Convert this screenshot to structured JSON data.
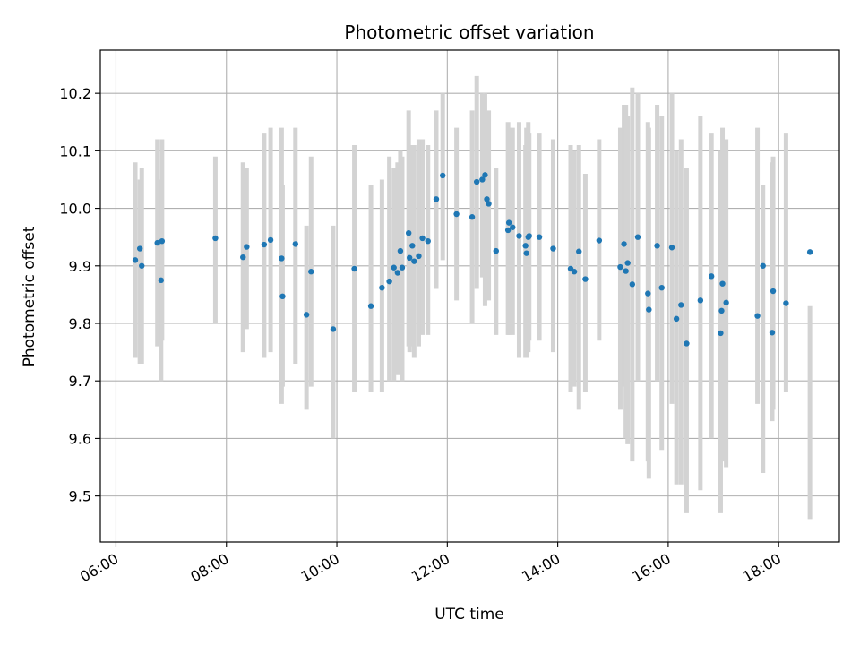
{
  "chart_data": {
    "type": "scatter",
    "title": "Photometric offset variation",
    "xlabel": "UTC time",
    "ylabel": "Photometric offset",
    "x_ticks": [
      "06:00",
      "08:00",
      "10:00",
      "12:00",
      "14:00",
      "16:00",
      "18:00"
    ],
    "y_ticks": [
      "9.5",
      "9.6",
      "9.7",
      "9.8",
      "9.9",
      "10.0",
      "10.1",
      "10.2"
    ],
    "xlim": [
      "05:43",
      "19:06"
    ],
    "ylim": [
      9.42,
      10.275
    ],
    "grid": true,
    "legend": "none",
    "colors": {
      "point": "#1f77b4",
      "errorbar": "#d3d3d3",
      "grid": "#b0b0b0"
    },
    "series": [
      {
        "x": [
          "06:21",
          "06:26",
          "06:28",
          "06:45",
          "06:49",
          "06:50",
          "07:48",
          "08:18",
          "08:22",
          "08:41",
          "08:48",
          "09:00",
          "09:01",
          "09:15",
          "09:27",
          "09:32",
          "09:56",
          "10:19",
          "10:37",
          "10:49",
          "10:57",
          "11:02",
          "11:06",
          "11:09",
          "11:11",
          "11:18",
          "11:19",
          "11:22",
          "11:24",
          "11:29",
          "11:33",
          "11:39",
          "11:48",
          "11:55",
          "12:10",
          "12:27",
          "12:32",
          "12:38",
          "12:41",
          "12:43",
          "12:45",
          "12:53",
          "13:06",
          "13:07",
          "13:11",
          "13:18",
          "13:25",
          "13:26",
          "13:28",
          "13:29",
          "13:40",
          "13:55",
          "14:14",
          "14:18",
          "14:23",
          "14:30",
          "14:45",
          "15:08",
          "15:12",
          "15:14",
          "15:16",
          "15:21",
          "15:27",
          "15:38",
          "15:39",
          "15:48",
          "15:53",
          "16:04",
          "16:09",
          "16:14",
          "16:20",
          "16:35",
          "16:47",
          "16:57",
          "16:58",
          "16:59",
          "17:03",
          "17:37",
          "17:43",
          "17:53",
          "17:54",
          "18:08",
          "18:34"
        ],
        "y": [
          9.91,
          9.93,
          9.9,
          9.94,
          9.875,
          9.943,
          9.948,
          9.915,
          9.933,
          9.937,
          9.945,
          9.913,
          9.847,
          9.938,
          9.815,
          9.89,
          9.79,
          9.895,
          9.83,
          9.862,
          9.873,
          9.897,
          9.888,
          9.926,
          9.897,
          9.957,
          9.914,
          9.935,
          9.908,
          9.917,
          9.948,
          9.943,
          10.016,
          10.057,
          9.99,
          9.985,
          10.046,
          10.05,
          10.058,
          10.016,
          10.008,
          9.926,
          9.962,
          9.975,
          9.967,
          9.952,
          9.935,
          9.922,
          9.95,
          9.952,
          9.95,
          9.93,
          9.895,
          9.89,
          9.925,
          9.877,
          9.944,
          9.898,
          9.938,
          9.891,
          9.905,
          9.868,
          9.95,
          9.852,
          9.824,
          9.935,
          9.862,
          9.932,
          9.808,
          9.832,
          9.765,
          9.84,
          9.882,
          9.783,
          9.822,
          9.869,
          9.836,
          9.813,
          9.9,
          9.784,
          9.856,
          9.835,
          9.924
        ],
        "err_low": [
          9.74,
          9.73,
          9.73,
          9.76,
          9.7,
          9.77,
          9.8,
          9.75,
          9.79,
          9.74,
          9.75,
          9.66,
          9.69,
          9.73,
          9.65,
          9.69,
          9.6,
          9.68,
          9.68,
          9.68,
          9.7,
          9.7,
          9.71,
          9.74,
          9.7,
          9.76,
          9.75,
          9.76,
          9.74,
          9.76,
          9.78,
          9.78,
          9.86,
          9.91,
          9.84,
          9.8,
          9.86,
          9.88,
          9.83,
          9.86,
          9.84,
          9.78,
          9.78,
          9.78,
          9.78,
          9.74,
          9.74,
          9.74,
          9.75,
          9.77,
          9.77,
          9.75,
          9.68,
          9.69,
          9.65,
          9.68,
          9.77,
          9.65,
          9.69,
          9.6,
          9.59,
          9.56,
          9.7,
          9.56,
          9.53,
          9.7,
          9.58,
          9.66,
          9.52,
          9.52,
          9.47,
          9.51,
          9.6,
          9.47,
          9.57,
          9.56,
          9.55,
          9.66,
          9.54,
          9.63,
          9.65,
          9.68,
          9.46
        ],
        "err_high": [
          10.08,
          10.05,
          10.07,
          10.12,
          10.05,
          10.12,
          10.09,
          10.08,
          10.07,
          10.13,
          10.14,
          10.14,
          10.04,
          10.14,
          9.97,
          10.09,
          9.97,
          10.11,
          10.04,
          10.05,
          10.09,
          10.07,
          10.08,
          10.1,
          10.09,
          10.17,
          10.1,
          10.11,
          10.11,
          10.12,
          10.12,
          10.11,
          10.17,
          10.2,
          10.14,
          10.17,
          10.23,
          10.2,
          10.2,
          10.16,
          10.17,
          10.07,
          10.15,
          10.14,
          10.14,
          10.15,
          10.11,
          10.14,
          10.15,
          10.13,
          10.13,
          10.12,
          10.11,
          10.1,
          10.11,
          10.06,
          10.12,
          10.14,
          10.18,
          10.18,
          10.16,
          10.21,
          10.2,
          10.15,
          10.14,
          10.18,
          10.16,
          10.2,
          10.1,
          10.12,
          10.07,
          10.16,
          10.13,
          10.1,
          10.09,
          10.14,
          10.12,
          10.14,
          10.04,
          10.08,
          10.09,
          10.13,
          9.83
        ]
      }
    ]
  }
}
